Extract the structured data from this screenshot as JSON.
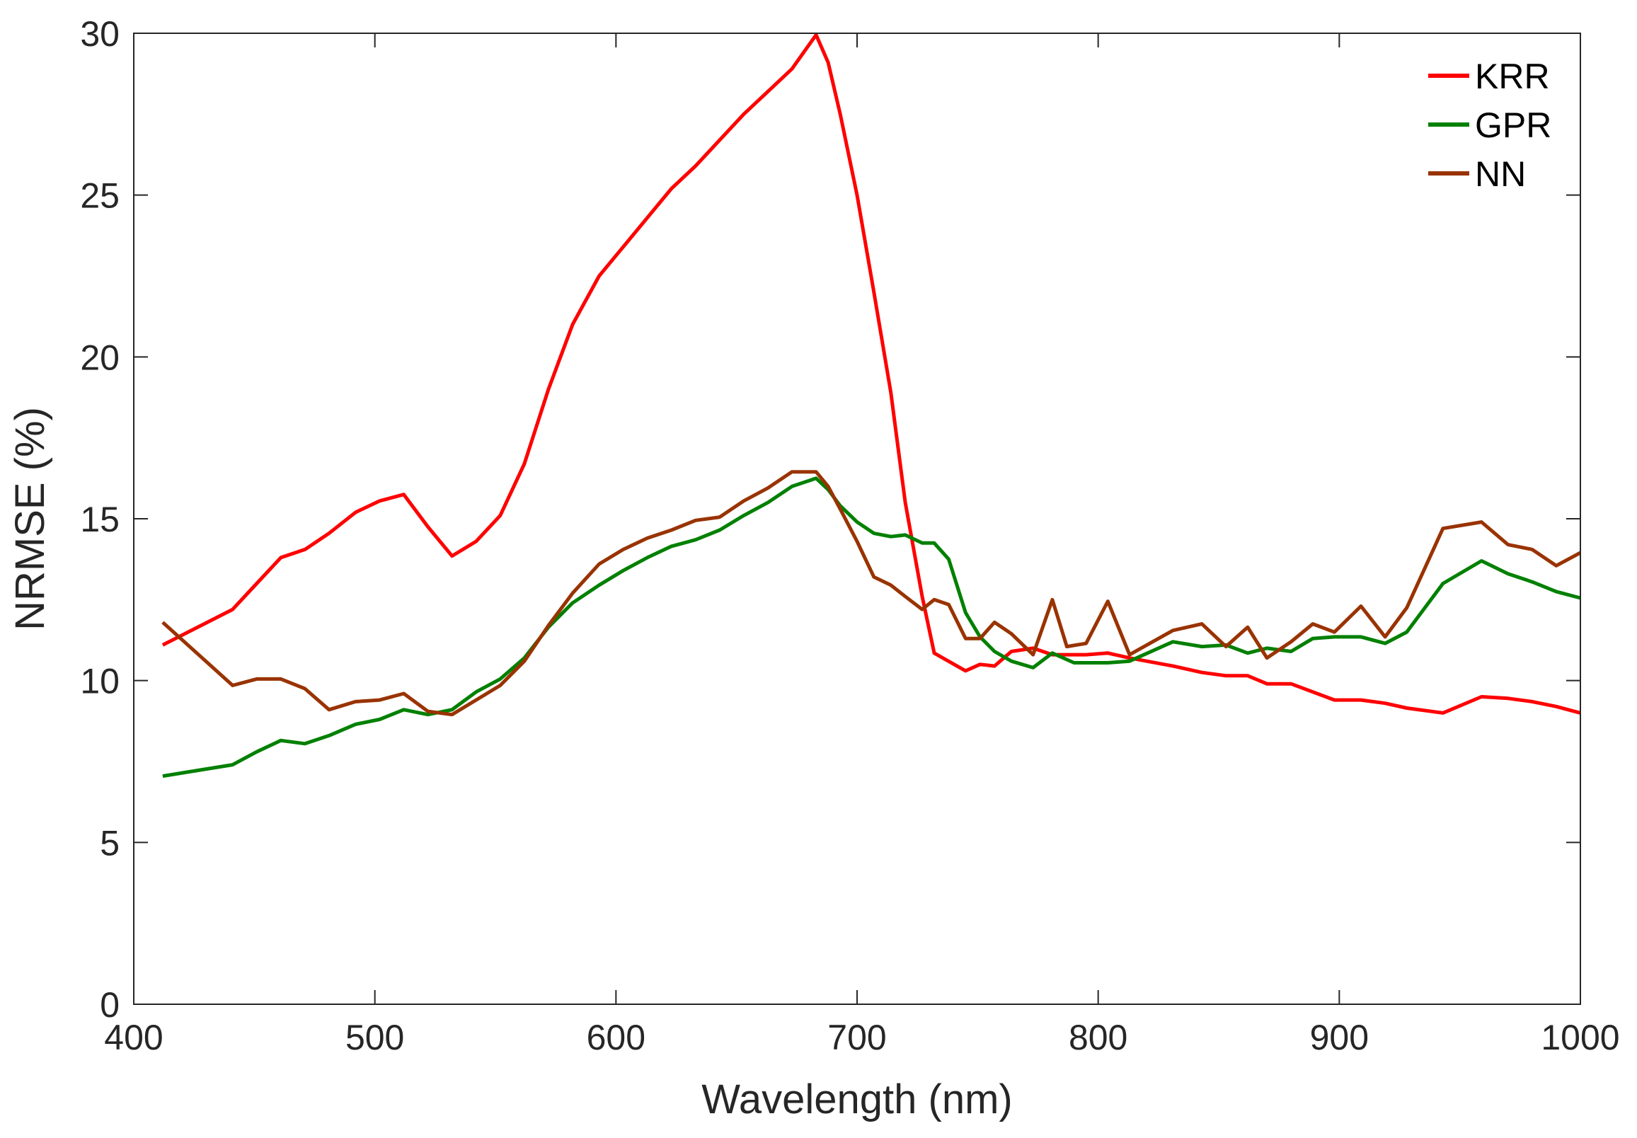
{
  "chart_data": {
    "type": "line",
    "title": "",
    "xlabel": "Wavelength (nm)",
    "ylabel": "NRMSE (%)",
    "xlim": [
      400,
      1000
    ],
    "ylim": [
      0,
      30
    ],
    "xticks": [
      400,
      500,
      600,
      700,
      800,
      900,
      1000
    ],
    "yticks": [
      0,
      5,
      10,
      15,
      20,
      25,
      30
    ],
    "grid": false,
    "legend_position": "upper right",
    "series": [
      {
        "name": "KRR",
        "color": "#ff0000",
        "x": [
          412,
          441,
          451,
          461,
          471,
          481,
          492,
          502,
          512,
          522,
          532,
          542,
          552,
          562,
          572,
          582,
          593,
          603,
          613,
          623,
          633,
          643,
          653,
          663,
          673,
          683,
          688,
          693,
          700,
          707,
          714,
          720,
          727,
          732,
          745,
          751,
          757,
          764,
          773,
          781,
          795,
          804,
          813,
          831,
          843,
          853,
          862,
          870,
          880,
          898,
          909,
          919,
          928,
          943,
          959,
          970,
          980,
          990,
          1000
        ],
        "values": [
          11.1,
          12.2,
          13.0,
          13.8,
          14.05,
          14.55,
          15.2,
          15.55,
          15.75,
          14.75,
          13.85,
          14.3,
          15.1,
          16.7,
          19.0,
          21.0,
          22.5,
          23.4,
          24.3,
          25.2,
          25.9,
          26.7,
          27.5,
          28.2,
          28.9,
          29.95,
          29.1,
          27.5,
          25.0,
          22.0,
          18.9,
          15.5,
          12.6,
          10.85,
          10.3,
          10.5,
          10.45,
          10.9,
          11.0,
          10.8,
          10.8,
          10.85,
          10.7,
          10.45,
          10.25,
          10.15,
          10.15,
          9.9,
          9.9,
          9.4,
          9.4,
          9.3,
          9.15,
          9.0,
          9.5,
          9.45,
          9.35,
          9.2,
          9.0
        ]
      },
      {
        "name": "GPR",
        "color": "#008000",
        "x": [
          412,
          441,
          451,
          461,
          471,
          481,
          492,
          502,
          512,
          522,
          532,
          542,
          552,
          562,
          572,
          582,
          593,
          603,
          613,
          623,
          633,
          643,
          653,
          663,
          673,
          683,
          688,
          693,
          700,
          707,
          714,
          720,
          727,
          732,
          738,
          745,
          751,
          757,
          764,
          773,
          781,
          790,
          804,
          813,
          831,
          843,
          853,
          862,
          870,
          880,
          889,
          898,
          909,
          919,
          928,
          943,
          959,
          970,
          980,
          990,
          1000
        ],
        "values": [
          7.05,
          7.4,
          7.8,
          8.15,
          8.05,
          8.3,
          8.65,
          8.8,
          9.1,
          8.95,
          9.1,
          9.65,
          10.05,
          10.7,
          11.65,
          12.4,
          12.95,
          13.4,
          13.8,
          14.15,
          14.35,
          14.65,
          15.1,
          15.5,
          16.0,
          16.25,
          15.9,
          15.4,
          14.9,
          14.55,
          14.45,
          14.5,
          14.25,
          14.25,
          13.75,
          12.1,
          11.35,
          10.9,
          10.6,
          10.4,
          10.85,
          10.55,
          10.55,
          10.6,
          11.2,
          11.05,
          11.1,
          10.85,
          11.0,
          10.9,
          11.3,
          11.35,
          11.35,
          11.15,
          11.5,
          13.0,
          13.7,
          13.3,
          13.05,
          12.75,
          12.55
        ]
      },
      {
        "name": "NN",
        "color": "#993300",
        "x": [
          412,
          441,
          451,
          461,
          471,
          481,
          492,
          502,
          512,
          522,
          532,
          542,
          552,
          562,
          572,
          582,
          593,
          603,
          613,
          623,
          633,
          643,
          653,
          663,
          673,
          683,
          688,
          693,
          700,
          707,
          714,
          720,
          727,
          732,
          738,
          745,
          751,
          757,
          764,
          773,
          781,
          787,
          795,
          804,
          813,
          831,
          843,
          853,
          862,
          870,
          880,
          889,
          898,
          909,
          919,
          928,
          943,
          959,
          970,
          980,
          990,
          1000
        ],
        "values": [
          11.8,
          9.85,
          10.05,
          10.05,
          9.75,
          9.1,
          9.35,
          9.4,
          9.6,
          9.05,
          8.95,
          9.4,
          9.85,
          10.6,
          11.7,
          12.7,
          13.6,
          14.05,
          14.4,
          14.65,
          14.95,
          15.05,
          15.55,
          15.95,
          16.45,
          16.45,
          16.0,
          15.3,
          14.3,
          13.2,
          12.95,
          12.6,
          12.2,
          12.5,
          12.35,
          11.3,
          11.3,
          11.8,
          11.45,
          10.8,
          12.5,
          11.05,
          11.15,
          12.45,
          10.8,
          11.55,
          11.75,
          11.05,
          11.65,
          10.7,
          11.2,
          11.75,
          11.5,
          12.3,
          11.35,
          12.25,
          14.7,
          14.9,
          14.2,
          14.05,
          13.55,
          13.95
        ]
      }
    ]
  },
  "axes": {
    "xlabel": "Wavelength (nm)",
    "ylabel": "NRMSE (%)",
    "xtick_labels": [
      "400",
      "500",
      "600",
      "700",
      "800",
      "900",
      "1000"
    ],
    "ytick_labels": [
      "0",
      "5",
      "10",
      "15",
      "20",
      "25",
      "30"
    ]
  },
  "legend": {
    "items": [
      {
        "label": "KRR",
        "color": "#ff0000"
      },
      {
        "label": "GPR",
        "color": "#008000"
      },
      {
        "label": "NN",
        "color": "#993300"
      }
    ]
  }
}
